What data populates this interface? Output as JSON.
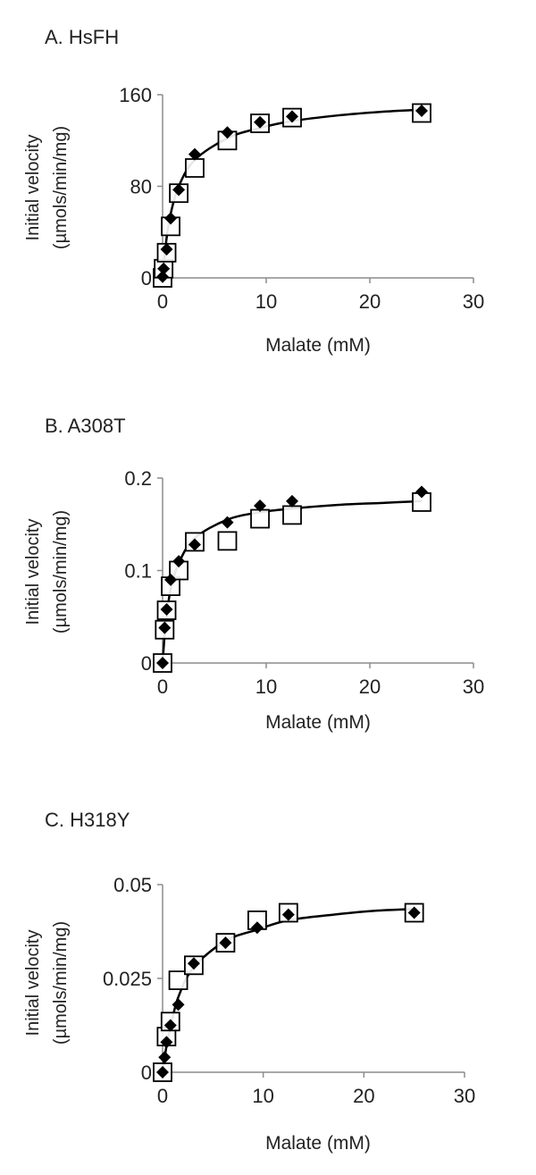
{
  "chart_data": [
    {
      "type": "scatter",
      "title": "A. HsFH",
      "xlabel": "Malate (mM)",
      "ylabel_line1": "Initial velocity",
      "ylabel_line2": "(µmols/min/mg)",
      "xlim": [
        0,
        30
      ],
      "ylim": [
        0,
        160
      ],
      "xticks": [
        0,
        10,
        20,
        30
      ],
      "yticks": [
        0,
        80,
        160
      ],
      "xtick_labels": [
        "0",
        "10",
        "20",
        "30"
      ],
      "ytick_labels": [
        "0",
        "80",
        "160"
      ],
      "grid": false,
      "series": [
        {
          "marker": "open-square",
          "color": "#000000",
          "x": [
            0,
            0.1,
            0.39,
            0.78,
            1.56,
            3.1,
            6.25,
            9.4,
            12.5,
            25
          ],
          "y": [
            0,
            8,
            22,
            45,
            74,
            96,
            120,
            135,
            140,
            144
          ]
        },
        {
          "marker": "filled-diamond",
          "color": "#000000",
          "x": [
            0,
            0.1,
            0.39,
            0.78,
            1.56,
            3.1,
            6.25,
            9.4,
            12.5,
            25
          ],
          "y": [
            1,
            8,
            25,
            52,
            77,
            108,
            127,
            136,
            141,
            146
          ]
        },
        {
          "marker": "line",
          "color": "#000000",
          "x": [
            0,
            0.39,
            0.78,
            1.56,
            3.1,
            6.25,
            9.4,
            12.5,
            17,
            21,
            25
          ],
          "y": [
            0,
            35,
            56,
            80,
            103,
            122,
            131,
            137,
            142,
            145,
            147
          ]
        }
      ]
    },
    {
      "type": "scatter",
      "title": "B. A308T",
      "xlabel": "Malate (mM)",
      "ylabel_line1": "Initial velocity",
      "ylabel_line2": "(µmols/min/mg)",
      "xlim": [
        0,
        30
      ],
      "ylim": [
        0,
        0.2
      ],
      "xticks": [
        0,
        10,
        20,
        30
      ],
      "yticks": [
        0,
        0.1,
        0.2
      ],
      "xtick_labels": [
        "0",
        "10",
        "20",
        "30"
      ],
      "ytick_labels": [
        "0",
        "0.1",
        "0.2"
      ],
      "grid": false,
      "series": [
        {
          "marker": "open-square",
          "color": "#000000",
          "x": [
            0,
            0.2,
            0.39,
            0.78,
            1.56,
            3.1,
            6.25,
            9.4,
            12.5,
            25
          ],
          "y": [
            0,
            0.036,
            0.057,
            0.083,
            0.1,
            0.131,
            0.132,
            0.156,
            0.16,
            0.174
          ]
        },
        {
          "marker": "filled-diamond",
          "color": "#000000",
          "x": [
            0,
            0.2,
            0.39,
            0.78,
            1.56,
            3.1,
            6.25,
            9.4,
            12.5,
            25
          ],
          "y": [
            0,
            0.038,
            0.058,
            0.09,
            0.11,
            0.128,
            0.152,
            0.17,
            0.175,
            0.185
          ]
        },
        {
          "marker": "line",
          "color": "#000000",
          "x": [
            0,
            0.2,
            0.39,
            0.78,
            1.56,
            3.1,
            6.25,
            9.4,
            12.5,
            17,
            21,
            25
          ],
          "y": [
            0,
            0.03,
            0.05,
            0.08,
            0.108,
            0.135,
            0.155,
            0.163,
            0.167,
            0.171,
            0.173,
            0.175
          ]
        }
      ]
    },
    {
      "type": "scatter",
      "title": "C. H318Y",
      "xlabel": "Malate (mM)",
      "ylabel_line1": "Initial velocity",
      "ylabel_line2": "(µmols/min/mg)",
      "xlim": [
        0,
        30
      ],
      "ylim": [
        0,
        0.05
      ],
      "xticks": [
        0,
        10,
        20,
        30
      ],
      "yticks": [
        0,
        0.025,
        0.05
      ],
      "xtick_labels": [
        "0",
        "10",
        "20",
        "30"
      ],
      "ytick_labels": [
        "0",
        "0.025",
        "0.05"
      ],
      "grid": false,
      "series": [
        {
          "marker": "open-square",
          "color": "#000000",
          "x": [
            0,
            0.39,
            0.78,
            1.56,
            3.1,
            6.25,
            9.4,
            12.5,
            25
          ],
          "y": [
            0,
            0.0095,
            0.0135,
            0.0245,
            0.0285,
            0.0345,
            0.0405,
            0.0425,
            0.0425
          ]
        },
        {
          "marker": "filled-diamond",
          "color": "#000000",
          "x": [
            0,
            0.2,
            0.39,
            0.78,
            1.56,
            3.1,
            6.25,
            9.4,
            12.5,
            25
          ],
          "y": [
            0,
            0.004,
            0.008,
            0.0125,
            0.018,
            0.029,
            0.0345,
            0.0385,
            0.042,
            0.0425
          ]
        },
        {
          "marker": "line",
          "color": "#000000",
          "x": [
            0,
            0.39,
            0.78,
            1.56,
            3.1,
            6.25,
            9.4,
            12.5,
            17,
            21,
            25
          ],
          "y": [
            0,
            0.007,
            0.012,
            0.02,
            0.028,
            0.035,
            0.038,
            0.0405,
            0.042,
            0.043,
            0.0435
          ]
        }
      ]
    }
  ]
}
